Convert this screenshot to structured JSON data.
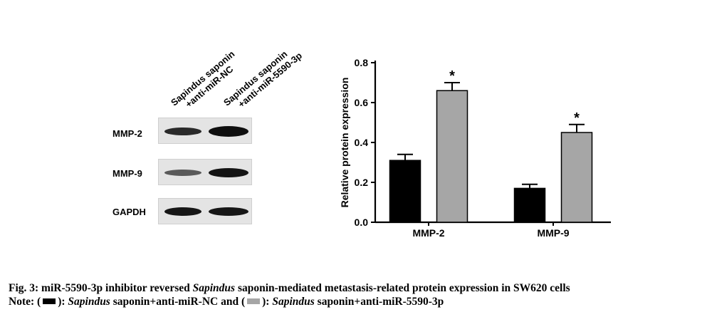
{
  "blot": {
    "lanes": [
      {
        "line1": "Sapindus saponin",
        "line2": "+anti-miR-NC"
      },
      {
        "line1": "Sapindus saponin",
        "line2": "+anti-miR-5590-3p"
      }
    ],
    "rows": [
      "MMP-2",
      "MMP-9",
      "GAPDH"
    ]
  },
  "chart_data": {
    "type": "bar",
    "categories": [
      "MMP-2",
      "MMP-9"
    ],
    "series": [
      {
        "color": "#000000",
        "values": [
          0.31,
          0.17
        ],
        "errors": [
          0.03,
          0.02
        ]
      },
      {
        "color": "#a6a6a6",
        "values": [
          0.66,
          0.45
        ],
        "errors": [
          0.04,
          0.04
        ]
      }
    ],
    "annotations": [
      "*",
      "*"
    ],
    "ylabel": "Relative protein expression",
    "xlabel": "",
    "ylim": [
      0,
      0.8
    ],
    "yticks": [
      "0.0",
      "0.2",
      "0.4",
      "0.6",
      "0.8"
    ],
    "grid": false
  },
  "caption": {
    "line1_prefix": "Fig. 3: miR-5590-3p inhibitor reversed ",
    "line1_italic": "Sapindus",
    "line1_suffix": " saponin-mediated metastasis-related protein expression in SW620 cells",
    "note_label": "Note: (",
    "legend_1_close": "):",
    "legend_1_italic": "Sapindus",
    "legend_1_text": " saponin+anti-miR-NC and (",
    "legend_2_close": "):",
    "legend_2_italic": "Sapindus",
    "legend_2_text": " saponin+anti-miR-5590-3p"
  }
}
